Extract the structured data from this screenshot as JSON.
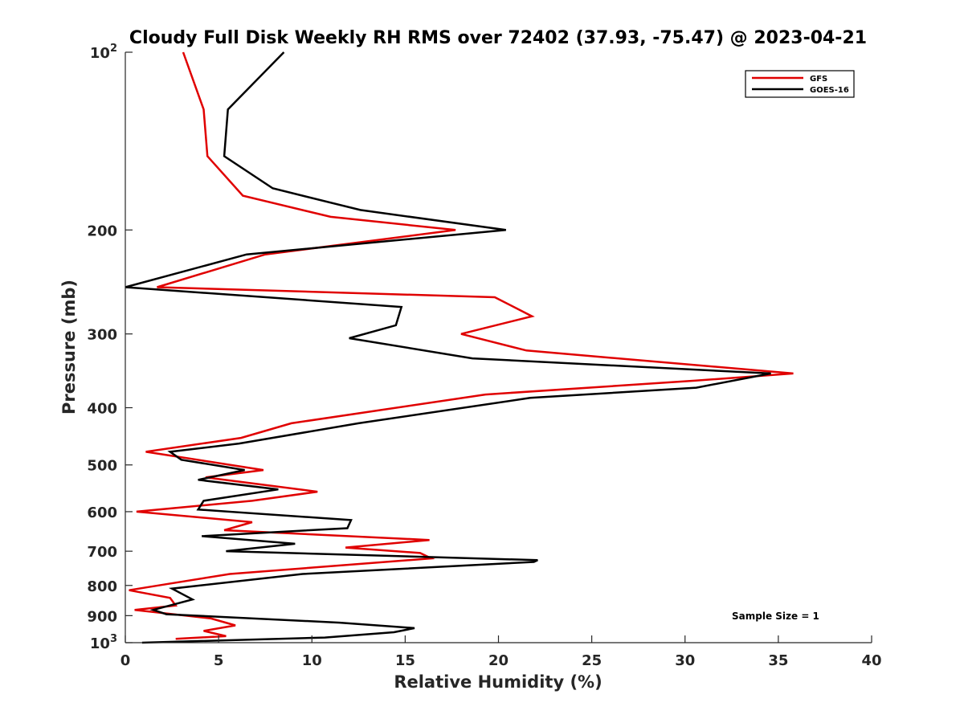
{
  "chart_data": {
    "type": "line",
    "title": "Cloudy Full Disk Weekly RH RMS over 72402 (37.93, -75.47) @ 2023-04-21",
    "xlabel": "Relative Humidity (%)",
    "ylabel": "Pressure (mb)",
    "xlim": [
      0,
      40
    ],
    "ylim": [
      100,
      1000
    ],
    "yscale": "log",
    "y_reversed": true,
    "x_ticks": [
      "0",
      "5",
      "10",
      "15",
      "20",
      "25",
      "30",
      "35",
      "40"
    ],
    "y_ticks": [
      {
        "value": 100,
        "base": "10",
        "exp": "2"
      },
      {
        "value": 200,
        "label": "200"
      },
      {
        "value": 300,
        "label": "300"
      },
      {
        "value": 400,
        "label": "400"
      },
      {
        "value": 500,
        "label": "500"
      },
      {
        "value": 600,
        "label": "600"
      },
      {
        "value": 700,
        "label": "700"
      },
      {
        "value": 800,
        "label": "800"
      },
      {
        "value": 900,
        "label": "900"
      },
      {
        "value": 1000,
        "base": "10",
        "exp": "3"
      }
    ],
    "grid": false,
    "legend_position": "top-right",
    "annotation": "Sample Size = 1",
    "series": [
      {
        "name": "GFS",
        "color": "#e00000",
        "points": [
          [
            3.1,
            100
          ],
          [
            4.2,
            125
          ],
          [
            4.4,
            150
          ],
          [
            6.3,
            175
          ],
          [
            11.0,
            190
          ],
          [
            17.7,
            200
          ],
          [
            7.5,
            220
          ],
          [
            1.7,
            250
          ],
          [
            19.8,
            260
          ],
          [
            21.8,
            280
          ],
          [
            18.0,
            300
          ],
          [
            21.5,
            320
          ],
          [
            35.8,
            350
          ],
          [
            30.5,
            360
          ],
          [
            19.3,
            380
          ],
          [
            8.9,
            425
          ],
          [
            6.2,
            450
          ],
          [
            1.1,
            475
          ],
          [
            7.4,
            510
          ],
          [
            4.3,
            525
          ],
          [
            10.3,
            555
          ],
          [
            6.8,
            575
          ],
          [
            0.6,
            600
          ],
          [
            6.8,
            625
          ],
          [
            5.3,
            645
          ],
          [
            16.3,
            670
          ],
          [
            11.8,
            690
          ],
          [
            15.8,
            705
          ],
          [
            16.4,
            720
          ],
          [
            5.6,
            765
          ],
          [
            2.3,
            795
          ],
          [
            0.2,
            815
          ],
          [
            2.4,
            840
          ],
          [
            2.7,
            865
          ],
          [
            0.5,
            880
          ],
          [
            4.6,
            910
          ],
          [
            5.9,
            935
          ],
          [
            4.2,
            955
          ],
          [
            5.4,
            975
          ],
          [
            2.7,
            985
          ]
        ]
      },
      {
        "name": "GOES-16",
        "color": "#000000",
        "points": [
          [
            8.5,
            100
          ],
          [
            5.5,
            125
          ],
          [
            5.3,
            150
          ],
          [
            7.9,
            170
          ],
          [
            12.6,
            185
          ],
          [
            20.4,
            200
          ],
          [
            6.5,
            220
          ],
          [
            0.0,
            250
          ],
          [
            14.8,
            270
          ],
          [
            14.5,
            290
          ],
          [
            12.0,
            305
          ],
          [
            18.6,
            330
          ],
          [
            34.6,
            350
          ],
          [
            30.6,
            370
          ],
          [
            21.7,
            385
          ],
          [
            12.5,
            425
          ],
          [
            6.1,
            460
          ],
          [
            2.4,
            475
          ],
          [
            3.0,
            490
          ],
          [
            6.4,
            510
          ],
          [
            3.9,
            530
          ],
          [
            8.2,
            550
          ],
          [
            4.2,
            575
          ],
          [
            3.9,
            595
          ],
          [
            12.1,
            620
          ],
          [
            11.9,
            640
          ],
          [
            4.1,
            660
          ],
          [
            9.1,
            680
          ],
          [
            5.4,
            700
          ],
          [
            22.1,
            725
          ],
          [
            21.9,
            730
          ],
          [
            9.5,
            765
          ],
          [
            2.5,
            810
          ],
          [
            3.6,
            845
          ],
          [
            1.5,
            880
          ],
          [
            2.2,
            895
          ],
          [
            11.5,
            925
          ],
          [
            15.5,
            945
          ],
          [
            14.4,
            960
          ],
          [
            10.7,
            980
          ],
          [
            0.9,
            1000
          ]
        ]
      }
    ]
  }
}
